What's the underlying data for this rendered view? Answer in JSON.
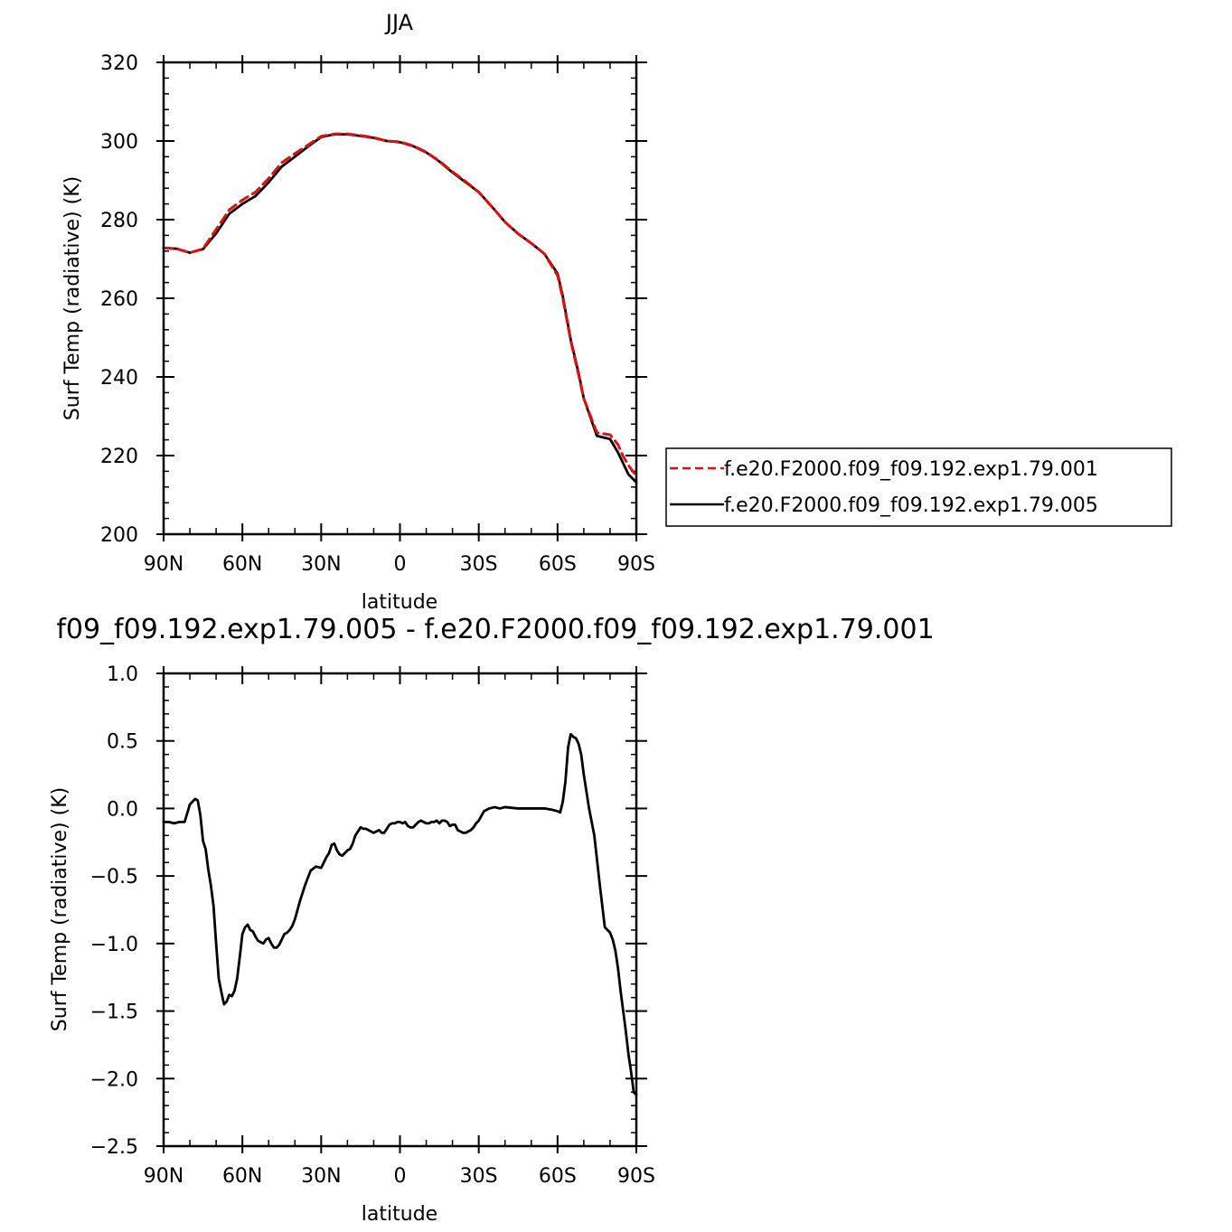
{
  "chart_data": [
    {
      "type": "line",
      "title": "JJA",
      "xlabel": "latitude",
      "ylabel": "Surf Temp (radiative) (K)",
      "xlim": [
        90,
        -90
      ],
      "ylim": [
        200,
        320
      ],
      "x_ticks": [
        {
          "value": 90,
          "label": "90N"
        },
        {
          "value": 60,
          "label": "60N"
        },
        {
          "value": 30,
          "label": "30N"
        },
        {
          "value": 0,
          "label": "0"
        },
        {
          "value": -30,
          "label": "30S"
        },
        {
          "value": -60,
          "label": "60S"
        },
        {
          "value": -90,
          "label": "90S"
        }
      ],
      "y_ticks": [
        {
          "value": 200,
          "label": "200"
        },
        {
          "value": 220,
          "label": "220"
        },
        {
          "value": 240,
          "label": "240"
        },
        {
          "value": 260,
          "label": "260"
        },
        {
          "value": 280,
          "label": "280"
        },
        {
          "value": 300,
          "label": "300"
        },
        {
          "value": 320,
          "label": "320"
        }
      ],
      "legend_position": "right",
      "x": [
        90,
        85,
        80,
        75,
        70,
        65,
        60,
        55,
        50,
        45,
        40,
        35,
        30,
        25,
        20,
        15,
        10,
        5,
        0,
        -5,
        -10,
        -15,
        -20,
        -25,
        -30,
        -35,
        -40,
        -45,
        -50,
        -55,
        -60,
        -62,
        -65,
        -68,
        -70,
        -75,
        -80,
        -83,
        -85,
        -87,
        -90
      ],
      "series": [
        {
          "name": "f.e20.F2000.f09_f09.192.exp1.79.001",
          "color": "#e01010",
          "dash": "dashed",
          "values": [
            272.8,
            272.6,
            271.6,
            272.6,
            277.5,
            282.5,
            285.0,
            287.0,
            290.5,
            294.5,
            296.8,
            299.0,
            301.2,
            301.8,
            301.8,
            301.4,
            300.9,
            300.0,
            299.8,
            298.8,
            297.2,
            294.9,
            292.2,
            289.7,
            287.0,
            283.3,
            279.4,
            276.4,
            274.0,
            271.3,
            265.8,
            260.0,
            249.2,
            240.5,
            234.5,
            225.8,
            225.3,
            222.8,
            219.8,
            217.5,
            214.8
          ]
        },
        {
          "name": "f.e20.F2000.f09_f09.192.exp1.79.005",
          "color": "#000000",
          "dash": "solid",
          "values": [
            272.8,
            272.6,
            271.6,
            272.5,
            276.5,
            281.5,
            284.0,
            286.0,
            289.5,
            293.5,
            296.0,
            298.6,
            301.0,
            301.7,
            301.7,
            301.3,
            300.8,
            300.0,
            299.7,
            298.7,
            297.1,
            294.8,
            292.0,
            289.5,
            287.0,
            283.3,
            279.4,
            276.4,
            274.0,
            271.3,
            266.3,
            260.5,
            249.5,
            241.0,
            234.5,
            225.0,
            224.2,
            220.8,
            218.0,
            215.2,
            213.2
          ]
        }
      ]
    },
    {
      "type": "line",
      "title": "f09_f09.192.exp1.79.005 - f.e20.F2000.f09_f09.192.exp1.79.001",
      "xlabel": "latitude",
      "ylabel": "Surf Temp (radiative) (K)",
      "xlim": [
        90,
        -90
      ],
      "ylim": [
        -2.5,
        1.0
      ],
      "x_ticks": [
        {
          "value": 90,
          "label": "90N"
        },
        {
          "value": 60,
          "label": "60N"
        },
        {
          "value": 30,
          "label": "30N"
        },
        {
          "value": 0,
          "label": "0"
        },
        {
          "value": -30,
          "label": "30S"
        },
        {
          "value": -60,
          "label": "60S"
        },
        {
          "value": -90,
          "label": "90S"
        }
      ],
      "y_ticks": [
        {
          "value": 1.0,
          "label": "1.0"
        },
        {
          "value": 0.5,
          "label": "0.5"
        },
        {
          "value": 0.0,
          "label": "0.0"
        },
        {
          "value": -0.5,
          "label": "−0.5"
        },
        {
          "value": -1.0,
          "label": "−1.0"
        },
        {
          "value": -1.5,
          "label": "−1.5"
        },
        {
          "value": -2.0,
          "label": "−2.0"
        },
        {
          "value": -2.5,
          "label": "−2.5"
        }
      ],
      "x": [
        90,
        88,
        86,
        84,
        82,
        80,
        78,
        77,
        76,
        75,
        74,
        73,
        72,
        71,
        70,
        69,
        68,
        67,
        66,
        65,
        64,
        63,
        62,
        61,
        60,
        59,
        58,
        57,
        56,
        55,
        54,
        53,
        52,
        51,
        50,
        49,
        48,
        47,
        46,
        45,
        44,
        43,
        42,
        41,
        40,
        38,
        36,
        34,
        32,
        30,
        29,
        28,
        27,
        26,
        25,
        24,
        23,
        22,
        21,
        20,
        19,
        18,
        17,
        16,
        15,
        14,
        13,
        12,
        11,
        10,
        9,
        8,
        7,
        6,
        5,
        4,
        3,
        2,
        1,
        0,
        -1,
        -2,
        -3,
        -4,
        -5,
        -6,
        -7,
        -8,
        -9,
        -10,
        -11,
        -12,
        -13,
        -14,
        -15,
        -16,
        -17,
        -18,
        -19,
        -20,
        -21,
        -22,
        -23,
        -24,
        -25,
        -26,
        -27,
        -28,
        -29,
        -30,
        -32,
        -34,
        -36,
        -38,
        -40,
        -45,
        -50,
        -55,
        -58,
        -60,
        -61,
        -62,
        -63,
        -64,
        -65,
        -66,
        -67,
        -68,
        -69,
        -70,
        -72,
        -74,
        -76,
        -78,
        -80,
        -81,
        -82,
        -83,
        -84,
        -85,
        -86,
        -87,
        -88,
        -89,
        -90
      ],
      "series": [
        {
          "name": "",
          "color": "#000000",
          "dash": "solid",
          "values": [
            -0.1,
            -0.1,
            -0.11,
            -0.1,
            -0.1,
            0.03,
            0.07,
            0.06,
            -0.05,
            -0.24,
            -0.3,
            -0.45,
            -0.57,
            -0.72,
            -1.0,
            -1.26,
            -1.36,
            -1.45,
            -1.43,
            -1.38,
            -1.39,
            -1.35,
            -1.26,
            -1.1,
            -0.93,
            -0.88,
            -0.86,
            -0.9,
            -0.91,
            -0.95,
            -0.98,
            -0.99,
            -1.0,
            -0.97,
            -0.96,
            -1.0,
            -1.03,
            -1.03,
            -1.01,
            -0.97,
            -0.93,
            -0.92,
            -0.9,
            -0.87,
            -0.82,
            -0.68,
            -0.56,
            -0.46,
            -0.43,
            -0.44,
            -0.4,
            -0.36,
            -0.33,
            -0.27,
            -0.26,
            -0.31,
            -0.34,
            -0.35,
            -0.33,
            -0.31,
            -0.3,
            -0.26,
            -0.2,
            -0.17,
            -0.14,
            -0.15,
            -0.15,
            -0.16,
            -0.17,
            -0.18,
            -0.17,
            -0.16,
            -0.18,
            -0.18,
            -0.15,
            -0.12,
            -0.11,
            -0.11,
            -0.1,
            -0.1,
            -0.11,
            -0.1,
            -0.13,
            -0.14,
            -0.14,
            -0.12,
            -0.1,
            -0.09,
            -0.1,
            -0.11,
            -0.11,
            -0.1,
            -0.1,
            -0.09,
            -0.11,
            -0.09,
            -0.09,
            -0.1,
            -0.13,
            -0.12,
            -0.12,
            -0.16,
            -0.17,
            -0.18,
            -0.18,
            -0.17,
            -0.16,
            -0.14,
            -0.11,
            -0.09,
            -0.02,
            0.0,
            0.01,
            0.0,
            0.01,
            0.0,
            0.0,
            0.0,
            -0.01,
            -0.02,
            -0.03,
            0.05,
            0.2,
            0.45,
            0.55,
            0.53,
            0.52,
            0.48,
            0.4,
            0.25,
            0.0,
            -0.2,
            -0.55,
            -0.88,
            -0.92,
            -0.97,
            -1.05,
            -1.18,
            -1.35,
            -1.5,
            -1.65,
            -1.82,
            -1.95,
            -2.1,
            -2.12
          ]
        }
      ]
    }
  ]
}
